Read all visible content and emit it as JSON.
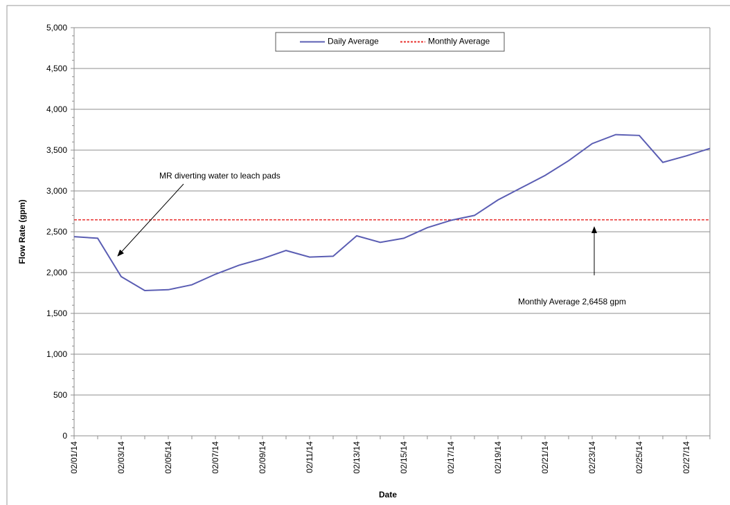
{
  "chart_data": {
    "type": "line",
    "y_label": "Flow Rate (gpm)",
    "x_label": "Date",
    "categories": [
      "02/01/14",
      null,
      "02/03/14",
      null,
      "02/05/14",
      null,
      "02/07/14",
      null,
      "02/09/14",
      null,
      "02/11/14",
      null,
      "02/13/14",
      null,
      "02/15/14",
      null,
      "02/17/14",
      null,
      "02/19/14",
      null,
      "02/21/14",
      null,
      "02/23/14",
      null,
      "02/25/14",
      null,
      "02/27/14",
      null
    ],
    "series": [
      {
        "name": "Daily Average",
        "color": "#5a5db3",
        "linestyle": "solid",
        "values": [
          2440,
          2420,
          1950,
          1780,
          1790,
          1850,
          1980,
          2090,
          2170,
          2270,
          2190,
          2200,
          2450,
          2370,
          2420,
          2550,
          2640,
          2700,
          2890,
          3040,
          3190,
          3370,
          3580,
          3690,
          3680,
          3350,
          3430,
          3520
        ]
      },
      {
        "name": "Monthly Average",
        "color": "#e8302e",
        "linestyle": "dashed",
        "values": [
          2646,
          2646,
          2646,
          2646,
          2646,
          2646,
          2646,
          2646,
          2646,
          2646,
          2646,
          2646,
          2646,
          2646,
          2646,
          2646,
          2646,
          2646,
          2646,
          2646,
          2646,
          2646,
          2646,
          2646,
          2646,
          2646,
          2646,
          2646
        ]
      }
    ],
    "ylim": [
      0,
      5000
    ],
    "yticks": [
      0,
      500,
      {
        "value": 1000,
        "label": "1,000"
      },
      {
        "value": 1500,
        "label": "1,500"
      },
      {
        "value": 2000,
        "label": "2,000"
      },
      {
        "value": 2500,
        "label": "2,500"
      },
      {
        "value": 3000,
        "label": "3,000"
      },
      {
        "value": 3500,
        "label": "3,500"
      },
      {
        "value": 4000,
        "label": "4,000"
      },
      {
        "value": 4500,
        "label": "4,500"
      },
      {
        "value": 5000,
        "label": "5,000"
      }
    ],
    "grid": true,
    "legend": "upper center",
    "annotations": [
      {
        "text": "MR diverting water to leach pads"
      },
      {
        "text": "Monthly Average 2,6458 gpm"
      }
    ]
  }
}
